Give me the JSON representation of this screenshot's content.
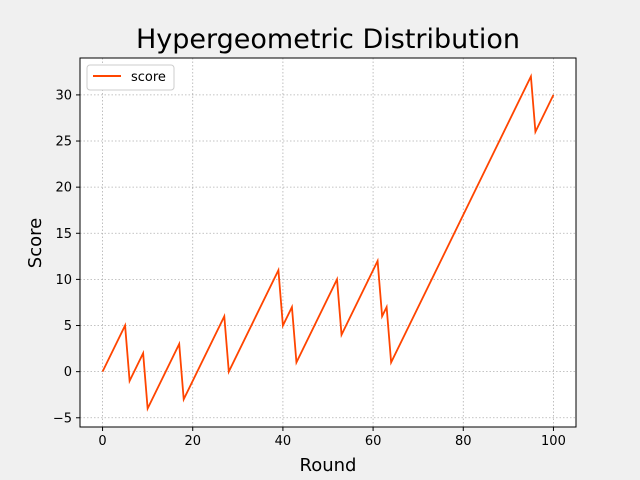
{
  "chart_data": {
    "type": "line",
    "title": "Hypergeometric Distribution",
    "xlabel": "Round",
    "ylabel": "Score",
    "xlim": [
      -5,
      105
    ],
    "ylim": [
      -6,
      34
    ],
    "xticks": [
      0,
      20,
      40,
      60,
      80,
      100
    ],
    "yticks": [
      -5,
      0,
      5,
      10,
      15,
      20,
      25,
      30
    ],
    "grid": true,
    "legend_position": "upper-left",
    "colors": {
      "series": "#ff4500",
      "background": "#f0f0f0",
      "plot_area": "#ffffff",
      "grid": "#b0b0b0"
    },
    "series": [
      {
        "name": "score",
        "points": [
          [
            0,
            0
          ],
          [
            5,
            5
          ],
          [
            6,
            -1
          ],
          [
            9,
            2
          ],
          [
            10,
            -4
          ],
          [
            17,
            3
          ],
          [
            18,
            -3
          ],
          [
            27,
            6
          ],
          [
            28,
            0
          ],
          [
            39,
            11
          ],
          [
            40,
            5
          ],
          [
            42,
            7
          ],
          [
            43,
            1
          ],
          [
            52,
            10
          ],
          [
            53,
            4
          ],
          [
            61,
            12
          ],
          [
            62,
            6
          ],
          [
            63,
            7
          ],
          [
            64,
            1
          ],
          [
            95,
            32
          ],
          [
            96,
            26
          ],
          [
            100,
            30
          ]
        ]
      }
    ]
  }
}
